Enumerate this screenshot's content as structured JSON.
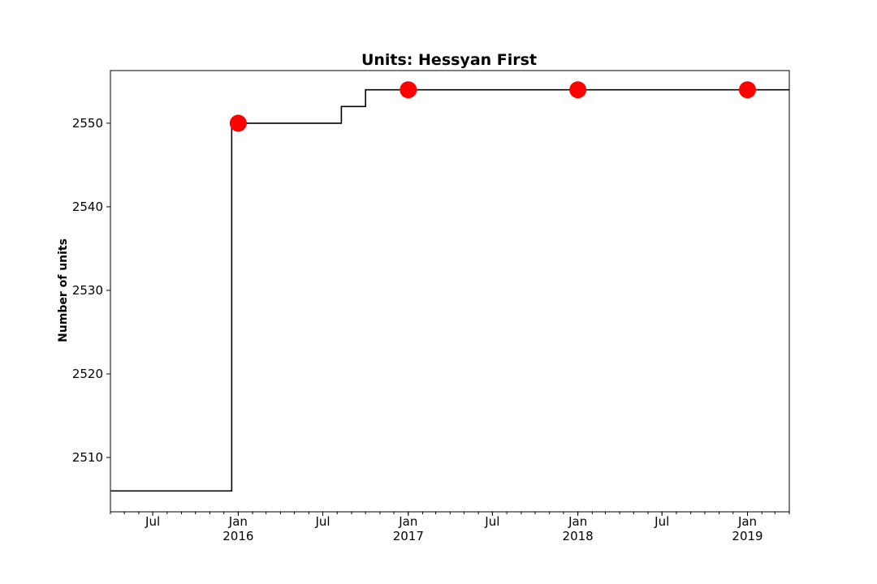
{
  "chart_data": {
    "type": "line",
    "title": "Units: Hessyan First",
    "xlabel": "",
    "ylabel": "Number of units",
    "xlim": [
      "2015-04-01",
      "2019-04-01"
    ],
    "ylim": [
      2503.5,
      2556.3
    ],
    "grid": false,
    "y_ticks": [
      2510,
      2520,
      2530,
      2540,
      2550
    ],
    "x_ticks": [
      {
        "date": "2015-07-01",
        "label": "Jul",
        "sublabel": ""
      },
      {
        "date": "2016-01-01",
        "label": "Jan",
        "sublabel": "2016"
      },
      {
        "date": "2016-07-01",
        "label": "Jul",
        "sublabel": ""
      },
      {
        "date": "2017-01-01",
        "label": "Jan",
        "sublabel": "2017"
      },
      {
        "date": "2017-07-01",
        "label": "Jul",
        "sublabel": ""
      },
      {
        "date": "2018-01-01",
        "label": "Jan",
        "sublabel": "2018"
      },
      {
        "date": "2018-07-01",
        "label": "Jul",
        "sublabel": ""
      },
      {
        "date": "2019-01-01",
        "label": "Jan",
        "sublabel": "2019"
      }
    ],
    "series": [
      {
        "kind": "step",
        "color": "#000000",
        "points": [
          {
            "x": "2015-04-01",
            "y": 2506
          },
          {
            "x": "2015-12-18",
            "y": 2550
          },
          {
            "x": "2016-08-10",
            "y": 2552
          },
          {
            "x": "2016-10-01",
            "y": 2554
          },
          {
            "x": "2019-04-01",
            "y": 2554
          }
        ]
      },
      {
        "kind": "markers",
        "color": "#ff0000",
        "points": [
          {
            "x": "2016-01-01",
            "y": 2550
          },
          {
            "x": "2017-01-01",
            "y": 2554
          },
          {
            "x": "2018-01-01",
            "y": 2554
          },
          {
            "x": "2019-01-01",
            "y": 2554
          }
        ]
      }
    ]
  }
}
